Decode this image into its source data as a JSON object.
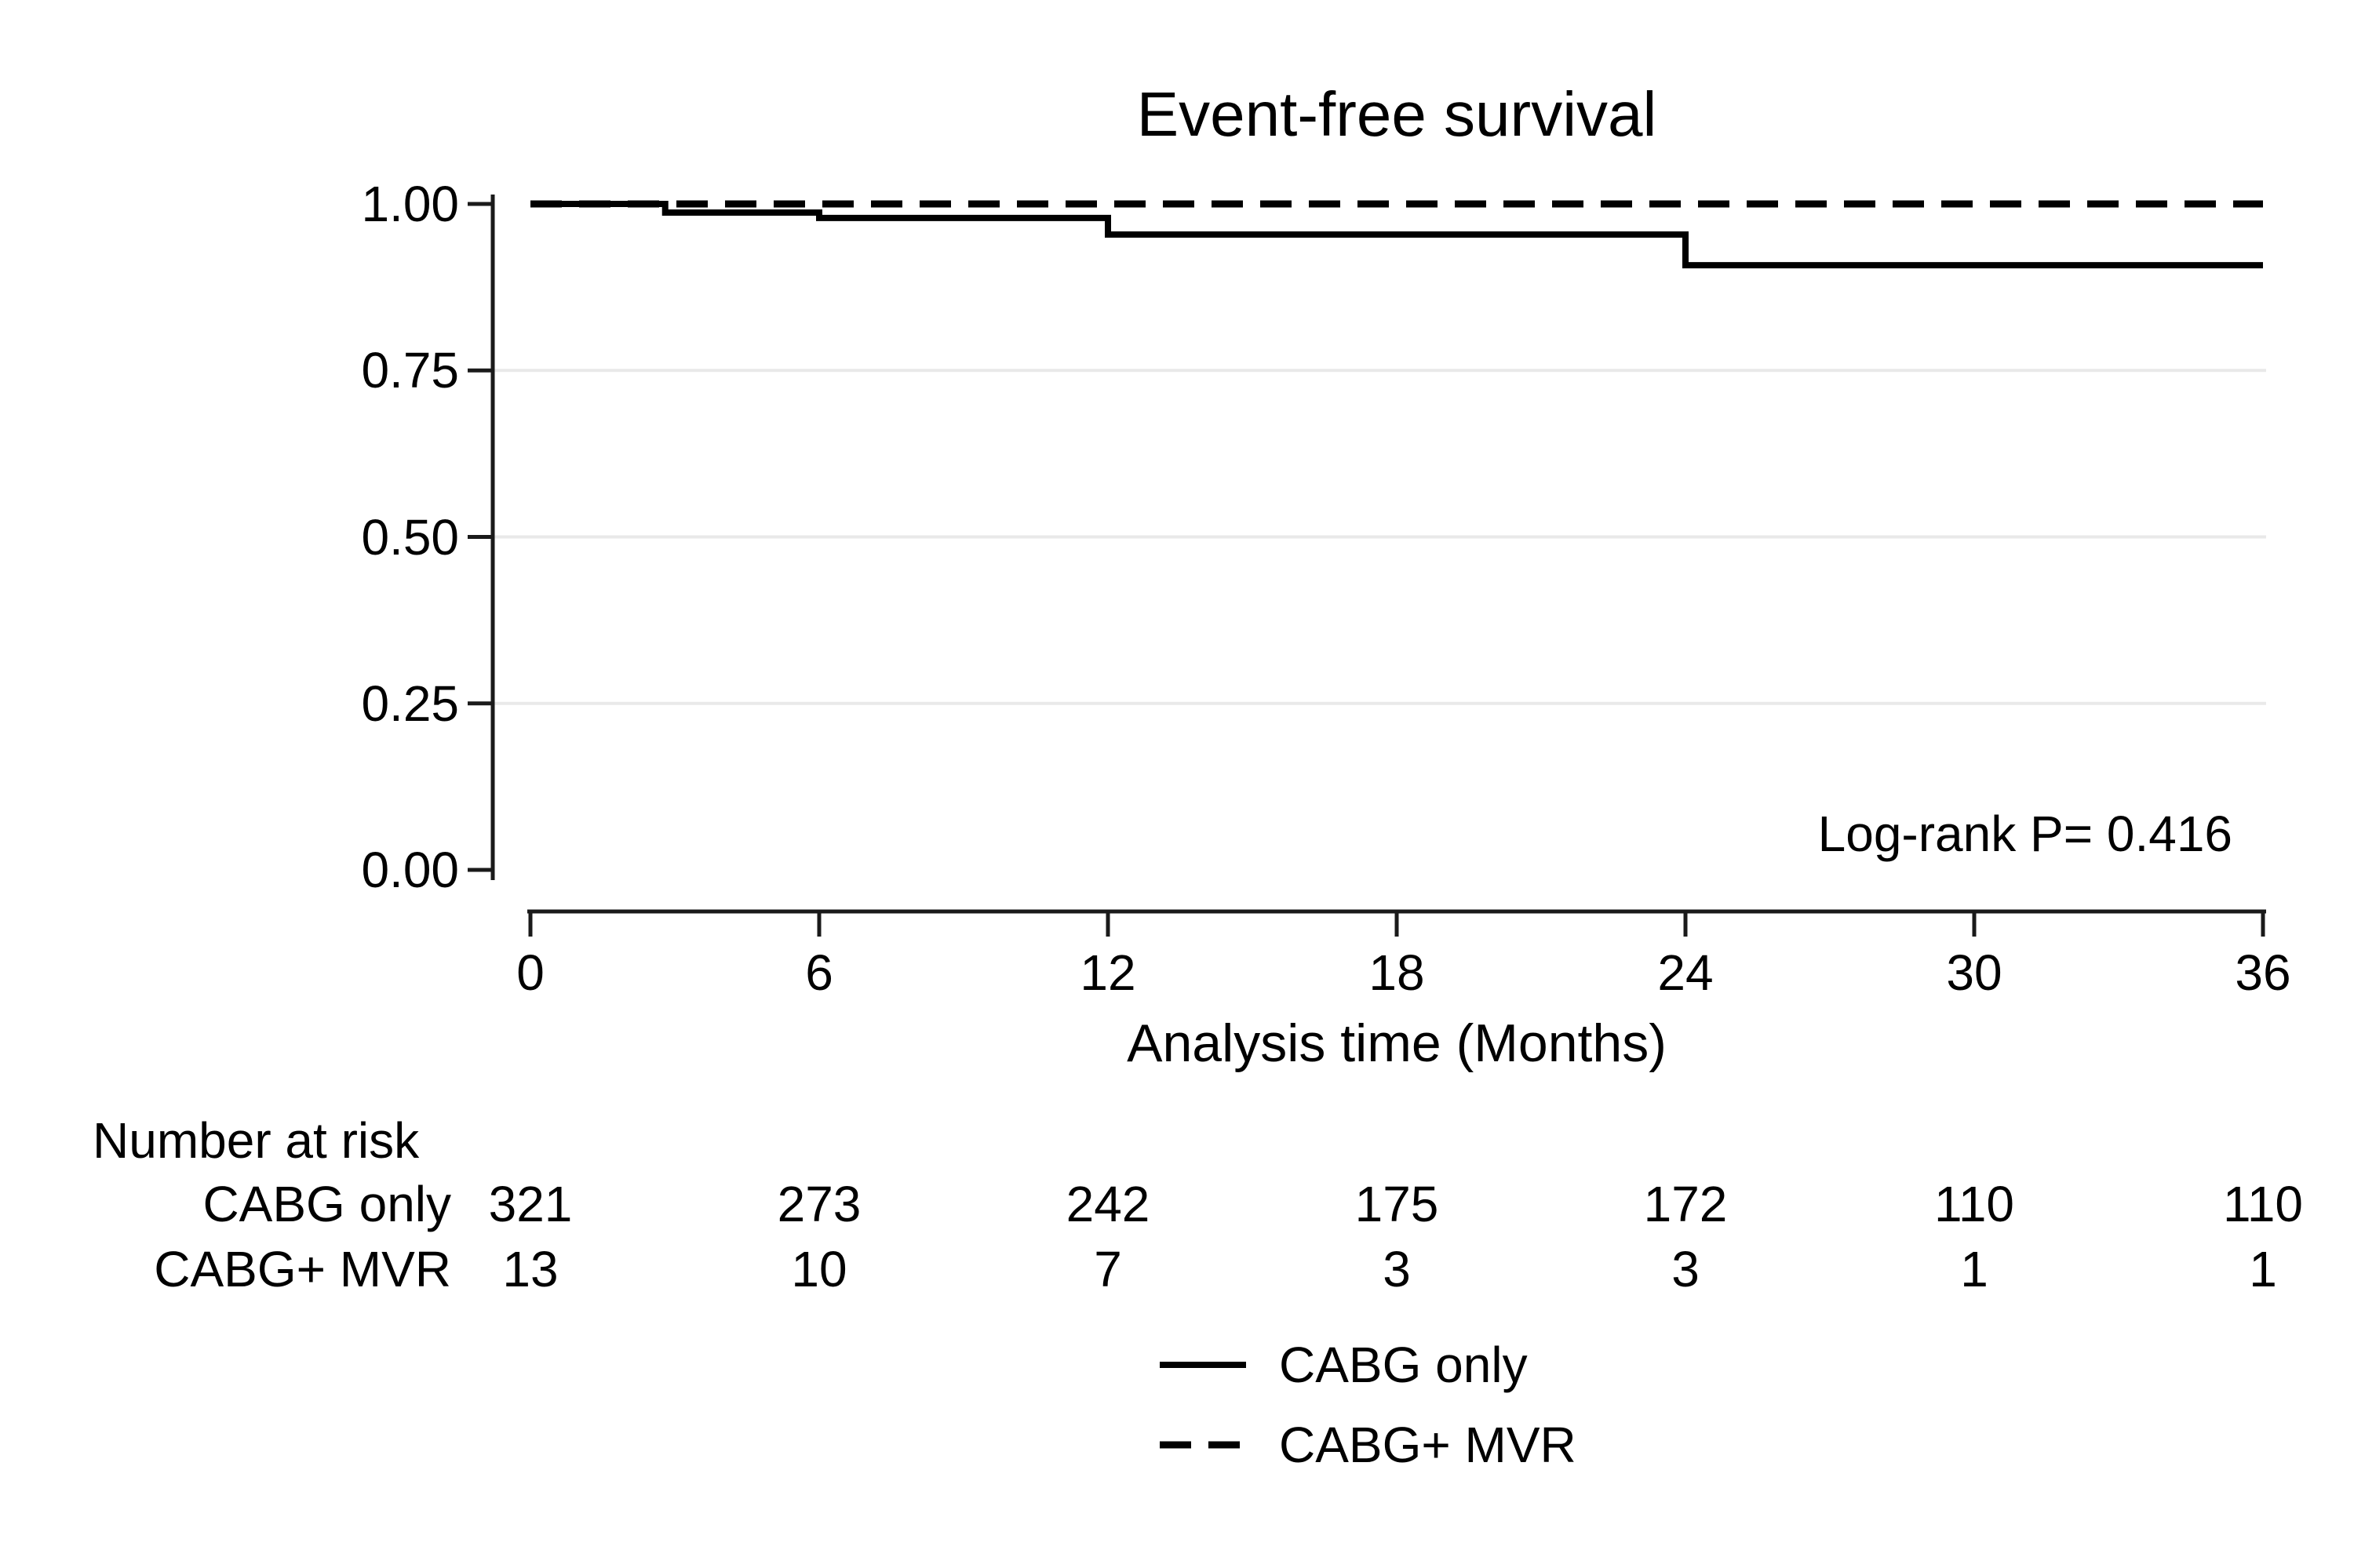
{
  "chart_data": {
    "type": "line",
    "subtype": "kaplan-meier-step-curve",
    "title": "Event-free survival",
    "xlabel": "Analysis time (Months)",
    "ylabel": "",
    "xlim": [
      0,
      36
    ],
    "ylim": [
      0.0,
      1.0
    ],
    "x_ticks": [
      0,
      6,
      12,
      18,
      24,
      30,
      36
    ],
    "x_tick_labels": [
      "0",
      "6",
      "12",
      "18",
      "24",
      "30",
      "36"
    ],
    "y_ticks": [
      1.0,
      0.75,
      0.5,
      0.25,
      0.0
    ],
    "y_tick_labels": [
      "1.00",
      "0.75",
      "0.50",
      "0.25",
      "0.00"
    ],
    "grid": "horizontal light-gray lines",
    "grid_values": [
      0.75,
      0.5,
      0.25
    ],
    "legend_position": "bottom-center",
    "annotation": "Log-rank P= 0.416",
    "series": [
      {
        "name": "CABG only",
        "line_style": "solid",
        "step": "post",
        "x": [
          0,
          2.8,
          6,
          12,
          24,
          36
        ],
        "y": [
          1.0,
          0.987,
          0.979,
          0.954,
          0.908,
          0.908
        ]
      },
      {
        "name": "CABG+ MVR",
        "line_style": "dashed",
        "step": "post",
        "x": [
          0,
          36
        ],
        "y": [
          1.0,
          1.0
        ]
      }
    ],
    "number_at_risk": {
      "header": "Number at risk",
      "times": [
        0,
        6,
        12,
        18,
        24,
        30,
        36
      ],
      "rows": [
        {
          "label": "CABG only",
          "counts": [
            "321",
            "273",
            "242",
            "175",
            "172",
            "110",
            "110"
          ]
        },
        {
          "label": "CABG+ MVR",
          "counts": [
            "13",
            "10",
            "7",
            "3",
            "3",
            "1",
            "1"
          ]
        }
      ]
    },
    "colors": {
      "line": "#000000",
      "grid": "#e9e9e9",
      "axis": "#1a1a1a",
      "text": "#000000",
      "background": "#ffffff"
    }
  }
}
